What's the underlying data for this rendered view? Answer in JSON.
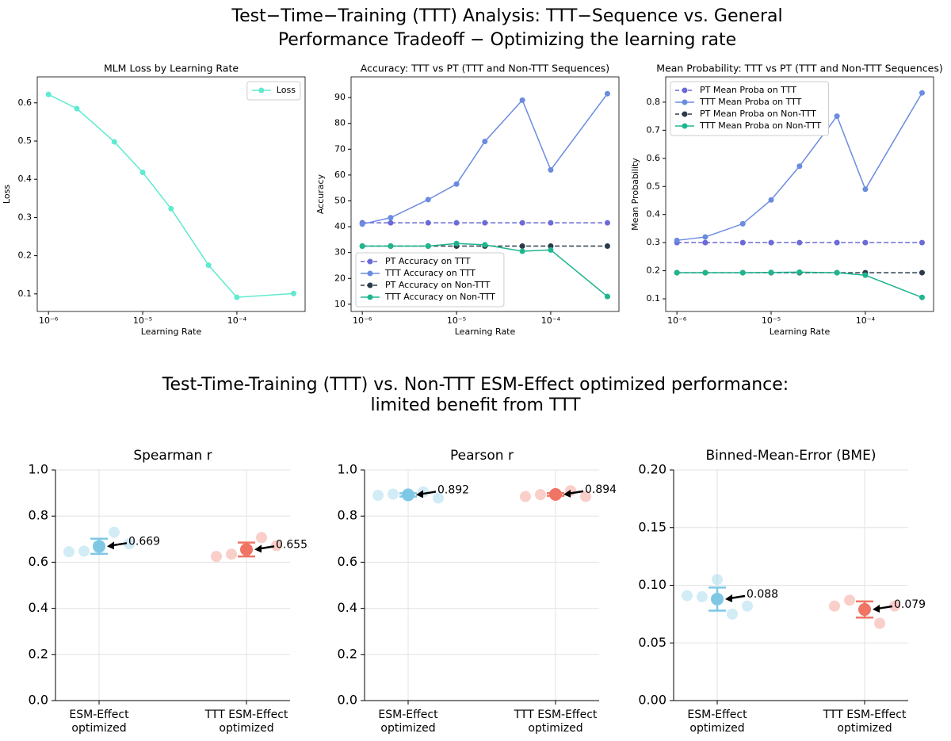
{
  "top_title": [
    "Test−Time−Training (TTT) Analysis: TTT−Sequence vs. General",
    "Performance Tradeoff − Optimizing the learning rate"
  ],
  "bottom_title": [
    "Test-Time-Training (TTT) vs. Non-TTT ESM-Effect optimized performance:",
    "limited benefit from TTT"
  ],
  "chart_data": [
    {
      "type": "line",
      "title": "MLM Loss by Learning Rate",
      "x_label": "Learning Rate",
      "y_label": "Loss",
      "xscale": "log",
      "legend": "upper right",
      "x": [
        1e-06,
        2e-06,
        5e-06,
        1e-05,
        2e-05,
        5e-05,
        0.0001,
        0.0004
      ],
      "series": [
        {
          "name": "Loss",
          "color": "#5eebd0",
          "dash": false,
          "values": [
            0.622,
            0.585,
            0.498,
            0.418,
            0.323,
            0.175,
            0.091,
            0.101
          ]
        }
      ],
      "xlim": [
        7.6e-07,
        0.00053
      ],
      "xticks": [
        {
          "value": 1e-06,
          "label": "10⁻⁶"
        },
        {
          "value": 1e-05,
          "label": "10⁻⁵"
        },
        {
          "value": 0.0001,
          "label": "10⁻⁴"
        }
      ],
      "ylim": [
        0.054,
        0.668
      ],
      "yticks": [
        0.1,
        0.2,
        0.3,
        0.4,
        0.5,
        0.6
      ]
    },
    {
      "type": "line",
      "title": "Accuracy: TTT vs PT (TTT and Non-TTT Sequences)",
      "x_label": "Learning Rate",
      "y_label": "Accuracy",
      "xscale": "log",
      "legend": "lower left",
      "x": [
        1e-06,
        2e-06,
        5e-06,
        1e-05,
        2e-05,
        5e-05,
        0.0001,
        0.0004
      ],
      "series": [
        {
          "name": "PT Accuracy on TTT",
          "color": "#6b6bd8",
          "dash": true,
          "values": [
            41.5,
            41.5,
            41.5,
            41.5,
            41.5,
            41.5,
            41.5,
            41.5
          ]
        },
        {
          "name": "TTT Accuracy on TTT",
          "color": "#6a8be0",
          "dash": false,
          "values": [
            41,
            43.5,
            50.5,
            56.5,
            73,
            89,
            62,
            91.5
          ]
        },
        {
          "name": "PT Accuracy on Non-TTT",
          "color": "#2b3a4a",
          "dash": true,
          "values": [
            32.5,
            32.5,
            32.5,
            32.5,
            32.5,
            32.5,
            32.5,
            32.5
          ]
        },
        {
          "name": "TTT Accuracy on Non-TTT",
          "color": "#1fb58f",
          "dash": false,
          "values": [
            32.5,
            32.5,
            32.5,
            33.5,
            33,
            30.5,
            31,
            13
          ]
        }
      ],
      "xlim": [
        7.6e-07,
        0.00053
      ],
      "xticks": [
        {
          "value": 1e-06,
          "label": "10⁻⁶"
        },
        {
          "value": 1e-05,
          "label": "10⁻⁵"
        },
        {
          "value": 0.0001,
          "label": "10⁻⁴"
        }
      ],
      "ylim": [
        7.2,
        98
      ],
      "yticks": [
        10,
        20,
        30,
        40,
        50,
        60,
        70,
        80,
        90
      ]
    },
    {
      "type": "line",
      "title": "Mean Probability: TTT vs PT (TTT and Non-TTT Sequences)",
      "x_label": "Learning Rate",
      "y_label": "Mean Probability",
      "xscale": "log",
      "legend": "upper left",
      "x": [
        1e-06,
        2e-06,
        5e-06,
        1e-05,
        2e-05,
        5e-05,
        0.0001,
        0.0004
      ],
      "series": [
        {
          "name": "PT Mean Proba on TTT",
          "color": "#6b6bd8",
          "dash": true,
          "values": [
            0.3,
            0.3,
            0.3,
            0.3,
            0.3,
            0.3,
            0.3,
            0.3
          ]
        },
        {
          "name": "TTT Mean Proba on TTT",
          "color": "#6a8be0",
          "dash": false,
          "values": [
            0.308,
            0.32,
            0.367,
            0.452,
            0.572,
            0.75,
            0.49,
            0.833
          ]
        },
        {
          "name": "PT Mean Proba on Non-TTT",
          "color": "#2b3a4a",
          "dash": true,
          "values": [
            0.193,
            0.193,
            0.193,
            0.193,
            0.193,
            0.193,
            0.193,
            0.193
          ]
        },
        {
          "name": "TTT Mean Proba on Non-TTT",
          "color": "#1fb58f",
          "dash": false,
          "values": [
            0.193,
            0.193,
            0.193,
            0.194,
            0.195,
            0.193,
            0.184,
            0.105
          ]
        }
      ],
      "xlim": [
        7.6e-07,
        0.00053
      ],
      "xticks": [
        {
          "value": 1e-06,
          "label": "10⁻⁶"
        },
        {
          "value": 1e-05,
          "label": "10⁻⁵"
        },
        {
          "value": 0.0001,
          "label": "10⁻⁴"
        }
      ],
      "ylim": [
        0.055,
        0.89
      ],
      "yticks": [
        0.1,
        0.2,
        0.3,
        0.4,
        0.5,
        0.6,
        0.7,
        0.8
      ]
    },
    {
      "type": "strip",
      "title": "Spearman r",
      "categories": [
        [
          "ESM-Effect",
          "optimized"
        ],
        [
          "TTT ESM-Effect",
          "optimized"
        ]
      ],
      "colors": [
        "#7ec8e6",
        "#f07464"
      ],
      "points": [
        [
          0.645,
          0.648,
          0.66,
          0.73,
          0.68
        ],
        [
          0.625,
          0.635,
          0.65,
          0.707,
          0.672
        ]
      ],
      "values": [
        0.669,
        0.655
      ],
      "errors": [
        0.033,
        0.03
      ],
      "ylim": [
        0,
        1
      ],
      "yticks": [
        {
          "value": 0,
          "label": "0.0"
        },
        0.2,
        0.4,
        0.6,
        0.8,
        {
          "value": 1,
          "label": "1.0"
        }
      ],
      "grid": true
    },
    {
      "type": "strip",
      "title": "Pearson r",
      "categories": [
        [
          "ESM-Effect",
          "optimized"
        ],
        [
          "TTT ESM-Effect",
          "optimized"
        ]
      ],
      "colors": [
        "#7ec8e6",
        "#f07464"
      ],
      "points": [
        [
          0.89,
          0.895,
          0.89,
          0.905,
          0.878
        ],
        [
          0.885,
          0.893,
          0.895,
          0.91,
          0.885
        ]
      ],
      "values": [
        0.892,
        0.894
      ],
      "errors": [
        0.007,
        0.006
      ],
      "ylim": [
        0,
        1
      ],
      "yticks": [
        {
          "value": 0,
          "label": "0.0"
        },
        0.2,
        0.4,
        0.6,
        0.8,
        {
          "value": 1,
          "label": "1.0"
        }
      ],
      "grid": true
    },
    {
      "type": "strip",
      "title": "Binned-Mean-Error (BME)",
      "categories": [
        [
          "ESM-Effect",
          "optimized"
        ],
        [
          "TTT ESM-Effect",
          "optimized"
        ]
      ],
      "colors": [
        "#7ec8e6",
        "#f07464"
      ],
      "points": [
        [
          0.091,
          0.09,
          0.105,
          0.075,
          0.082
        ],
        [
          0.082,
          0.087,
          0.08,
          0.067,
          0.082
        ]
      ],
      "values": [
        0.088,
        0.079
      ],
      "errors": [
        0.01,
        0.007
      ],
      "ylim": [
        0,
        0.2
      ],
      "yticks": [
        {
          "value": 0,
          "label": "0.00"
        },
        0.05,
        {
          "value": 0.1,
          "label": "0.10"
        },
        0.15,
        {
          "value": 0.2,
          "label": "0.20"
        }
      ],
      "grid": true
    }
  ]
}
